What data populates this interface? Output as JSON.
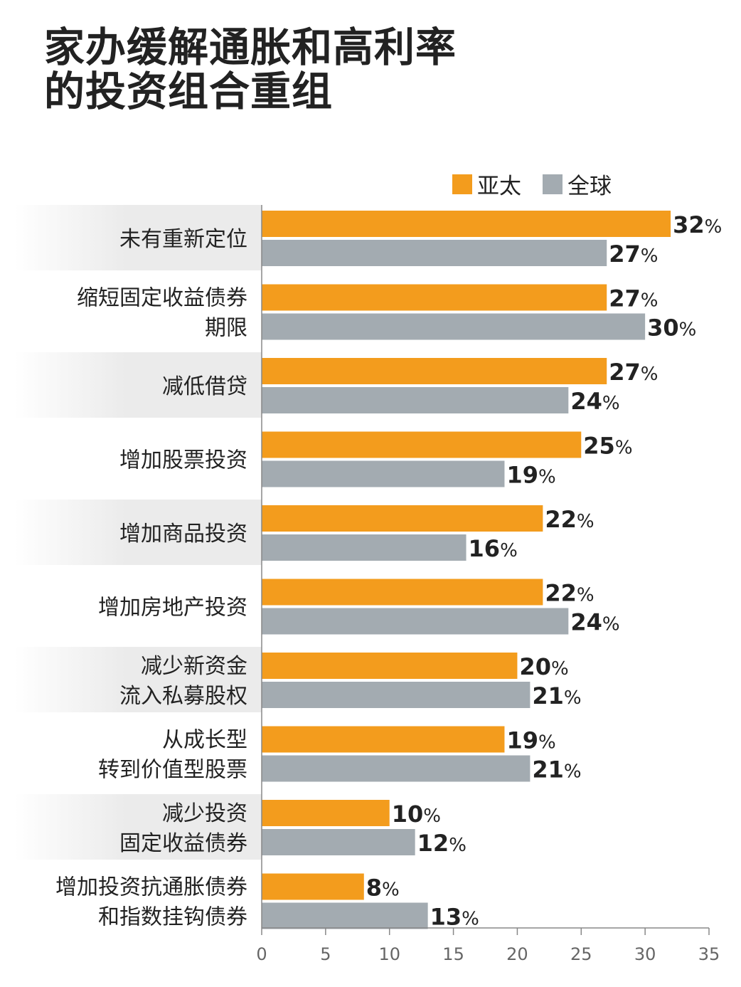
{
  "title_lines": [
    "家办缓解通胀和高利率",
    "的投资组合重组"
  ],
  "colors": {
    "asia_pacific": "#F39C1D",
    "global": "#A3ABB1",
    "band": "#EBEBEB",
    "axis": "#888888",
    "text": "#222222"
  },
  "chart_data": {
    "type": "bar",
    "orientation": "horizontal",
    "title": "家办缓解通胀和高利率的投资组合重组",
    "categories": [
      [
        "未有重新定位"
      ],
      [
        "缩短固定收益债券",
        "期限"
      ],
      [
        "减低借贷"
      ],
      [
        "增加股票投资"
      ],
      [
        "增加商品投资"
      ],
      [
        "增加房地产投资"
      ],
      [
        "减少新资金",
        "流入私募股权"
      ],
      [
        "从成长型",
        "转到价值型股票"
      ],
      [
        "减少投资",
        "固定收益债券"
      ],
      [
        "增加投资抗通胀债券",
        "和指数挂钩债券"
      ]
    ],
    "series": [
      {
        "name": "亚太",
        "values": [
          32,
          27,
          27,
          25,
          22,
          22,
          20,
          19,
          10,
          8
        ]
      },
      {
        "name": "全球",
        "values": [
          27,
          30,
          24,
          19,
          16,
          24,
          21,
          21,
          12,
          13
        ]
      }
    ],
    "value_suffix": "%",
    "xlim": [
      0,
      35
    ],
    "xticks": [
      0,
      5,
      10,
      15,
      20,
      25,
      30,
      35
    ],
    "legend_position": "top-right",
    "grid": false
  }
}
